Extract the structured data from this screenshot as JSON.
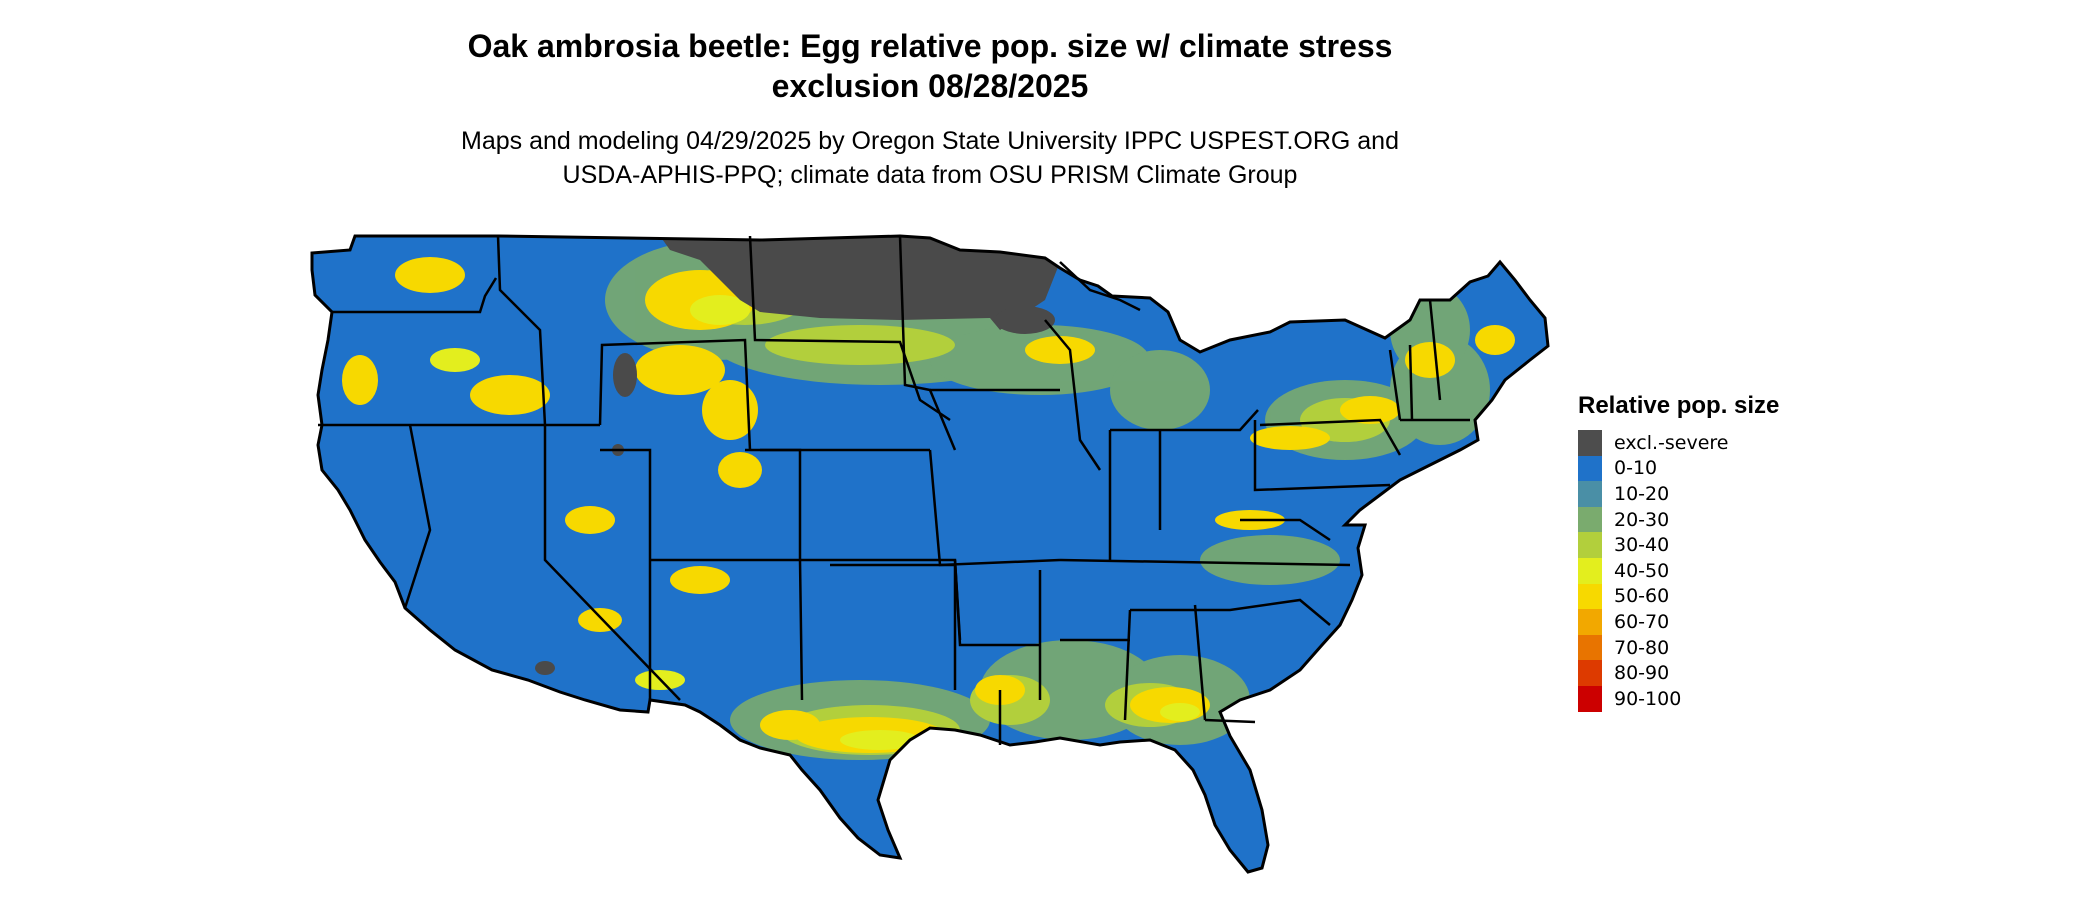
{
  "title_line1": "Oak ambrosia beetle: Egg relative pop. size w/ climate stress",
  "title_line2": "exclusion 08/28/2025",
  "subtitle_line1": "Maps and modeling 04/29/2025 by Oregon State University IPPC USPEST.ORG and",
  "subtitle_line2": "USDA-APHIS-PPQ; climate data from OSU PRISM Climate Group",
  "map": {
    "base_color": "#1f72c9",
    "excluded_color": "#4a4a4a",
    "boundary_color": "#000000"
  },
  "legend": {
    "title": "Relative pop. size",
    "items": [
      {
        "label": "excl.-severe",
        "color": "#4d4d4d"
      },
      {
        "label": "0-10",
        "color": "#1f72c9"
      },
      {
        "label": "10-20",
        "color": "#4a8fa6"
      },
      {
        "label": "20-30",
        "color": "#7aab6e"
      },
      {
        "label": "30-40",
        "color": "#b2cf3c"
      },
      {
        "label": "40-50",
        "color": "#e3ee1e"
      },
      {
        "label": "50-60",
        "color": "#f7d900"
      },
      {
        "label": "60-70",
        "color": "#f2a800"
      },
      {
        "label": "70-80",
        "color": "#e87400"
      },
      {
        "label": "80-90",
        "color": "#dd3a00"
      },
      {
        "label": "90-100",
        "color": "#cc0000"
      }
    ]
  }
}
